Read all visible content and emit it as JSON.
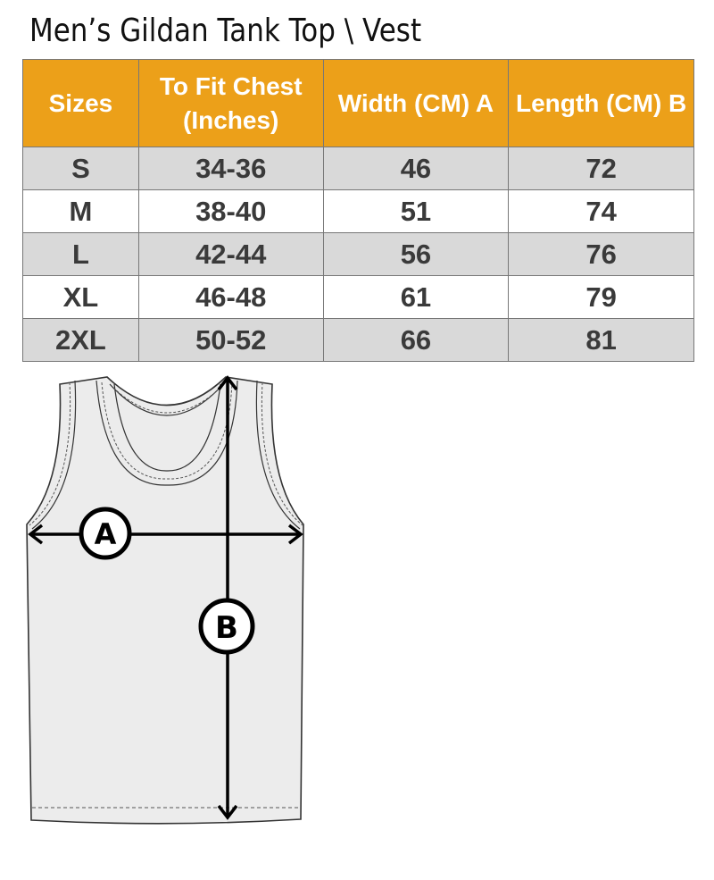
{
  "title": "Men’s Gildan Tank Top \\ Vest",
  "colors": {
    "header_bg": "#eca019",
    "header_text": "#ffffff",
    "stripe": "#d9d9d9",
    "body_text": "#3a3a3a"
  },
  "table": {
    "headers": [
      "Sizes",
      "To Fit Chest (Inches)",
      "Width (CM) A",
      "Length  (CM) B"
    ],
    "rows": [
      [
        "S",
        "34-36",
        "46",
        "72"
      ],
      [
        "M",
        "38-40",
        "51",
        "74"
      ],
      [
        "L",
        "42-44",
        "56",
        "76"
      ],
      [
        "XL",
        "46-48",
        "61",
        "79"
      ],
      [
        "2XL",
        "50-52",
        "66",
        "81"
      ]
    ]
  },
  "diagram": {
    "label_a": "A",
    "label_b": "B"
  }
}
